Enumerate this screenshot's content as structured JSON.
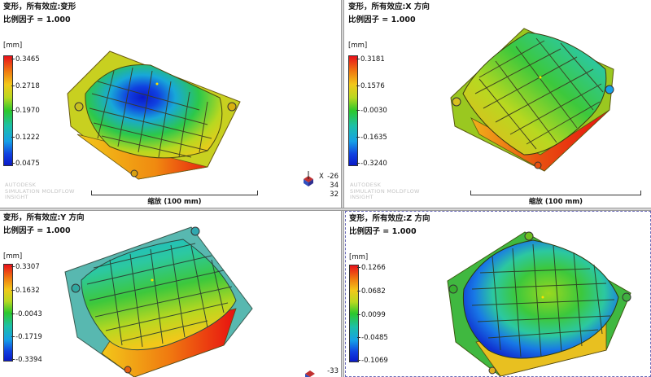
{
  "panes": [
    {
      "title": "变形，所有效应:变形",
      "scale_factor": "比例因子 = 1.000",
      "unit": "[mm]",
      "ticks": [
        "0.3465",
        "0.2718",
        "0.1970",
        "0.1222",
        "0.0475"
      ],
      "watermark": [
        "AUTODESK",
        "SIMULATION MOLDFLOW",
        "INSIGHT"
      ],
      "scale_label": "缩放 (100 mm)",
      "triad_label": "X",
      "angles": [
        "-26",
        "34",
        "32"
      ]
    },
    {
      "title": "变形，所有效应:X 方向",
      "scale_factor": "比例因子 = 1.000",
      "unit": "[mm]",
      "ticks": [
        "0.3181",
        "0.1576",
        "-0.0030",
        "-0.1635",
        "-0.3240"
      ],
      "watermark": [
        "AUTODESK",
        "SIMULATION MOLDFLOW",
        "INSIGHT"
      ],
      "scale_label": "缩放 (100 mm)"
    },
    {
      "title": "变形，所有效应:Y 方向",
      "scale_factor": "比例因子 = 1.000",
      "unit": "[mm]",
      "ticks": [
        "0.3307",
        "0.1632",
        "-0.0043",
        "-0.1719",
        "-0.3394"
      ],
      "angles": [
        "-33"
      ]
    },
    {
      "title": "变形，所有效应:Z 方向",
      "scale_factor": "比例因子 = 1.000",
      "unit": "[mm]",
      "ticks": [
        "0.1266",
        "0.0682",
        "0.0099",
        "-0.0485",
        "-0.1069"
      ]
    }
  ],
  "colors": {
    "red": "#e8101a",
    "orange": "#f07a10",
    "yellow": "#f2c81a",
    "green": "#2cc82c",
    "cyan": "#1cc0a8",
    "blue": "#1040e0",
    "frame": "#a08a10"
  }
}
